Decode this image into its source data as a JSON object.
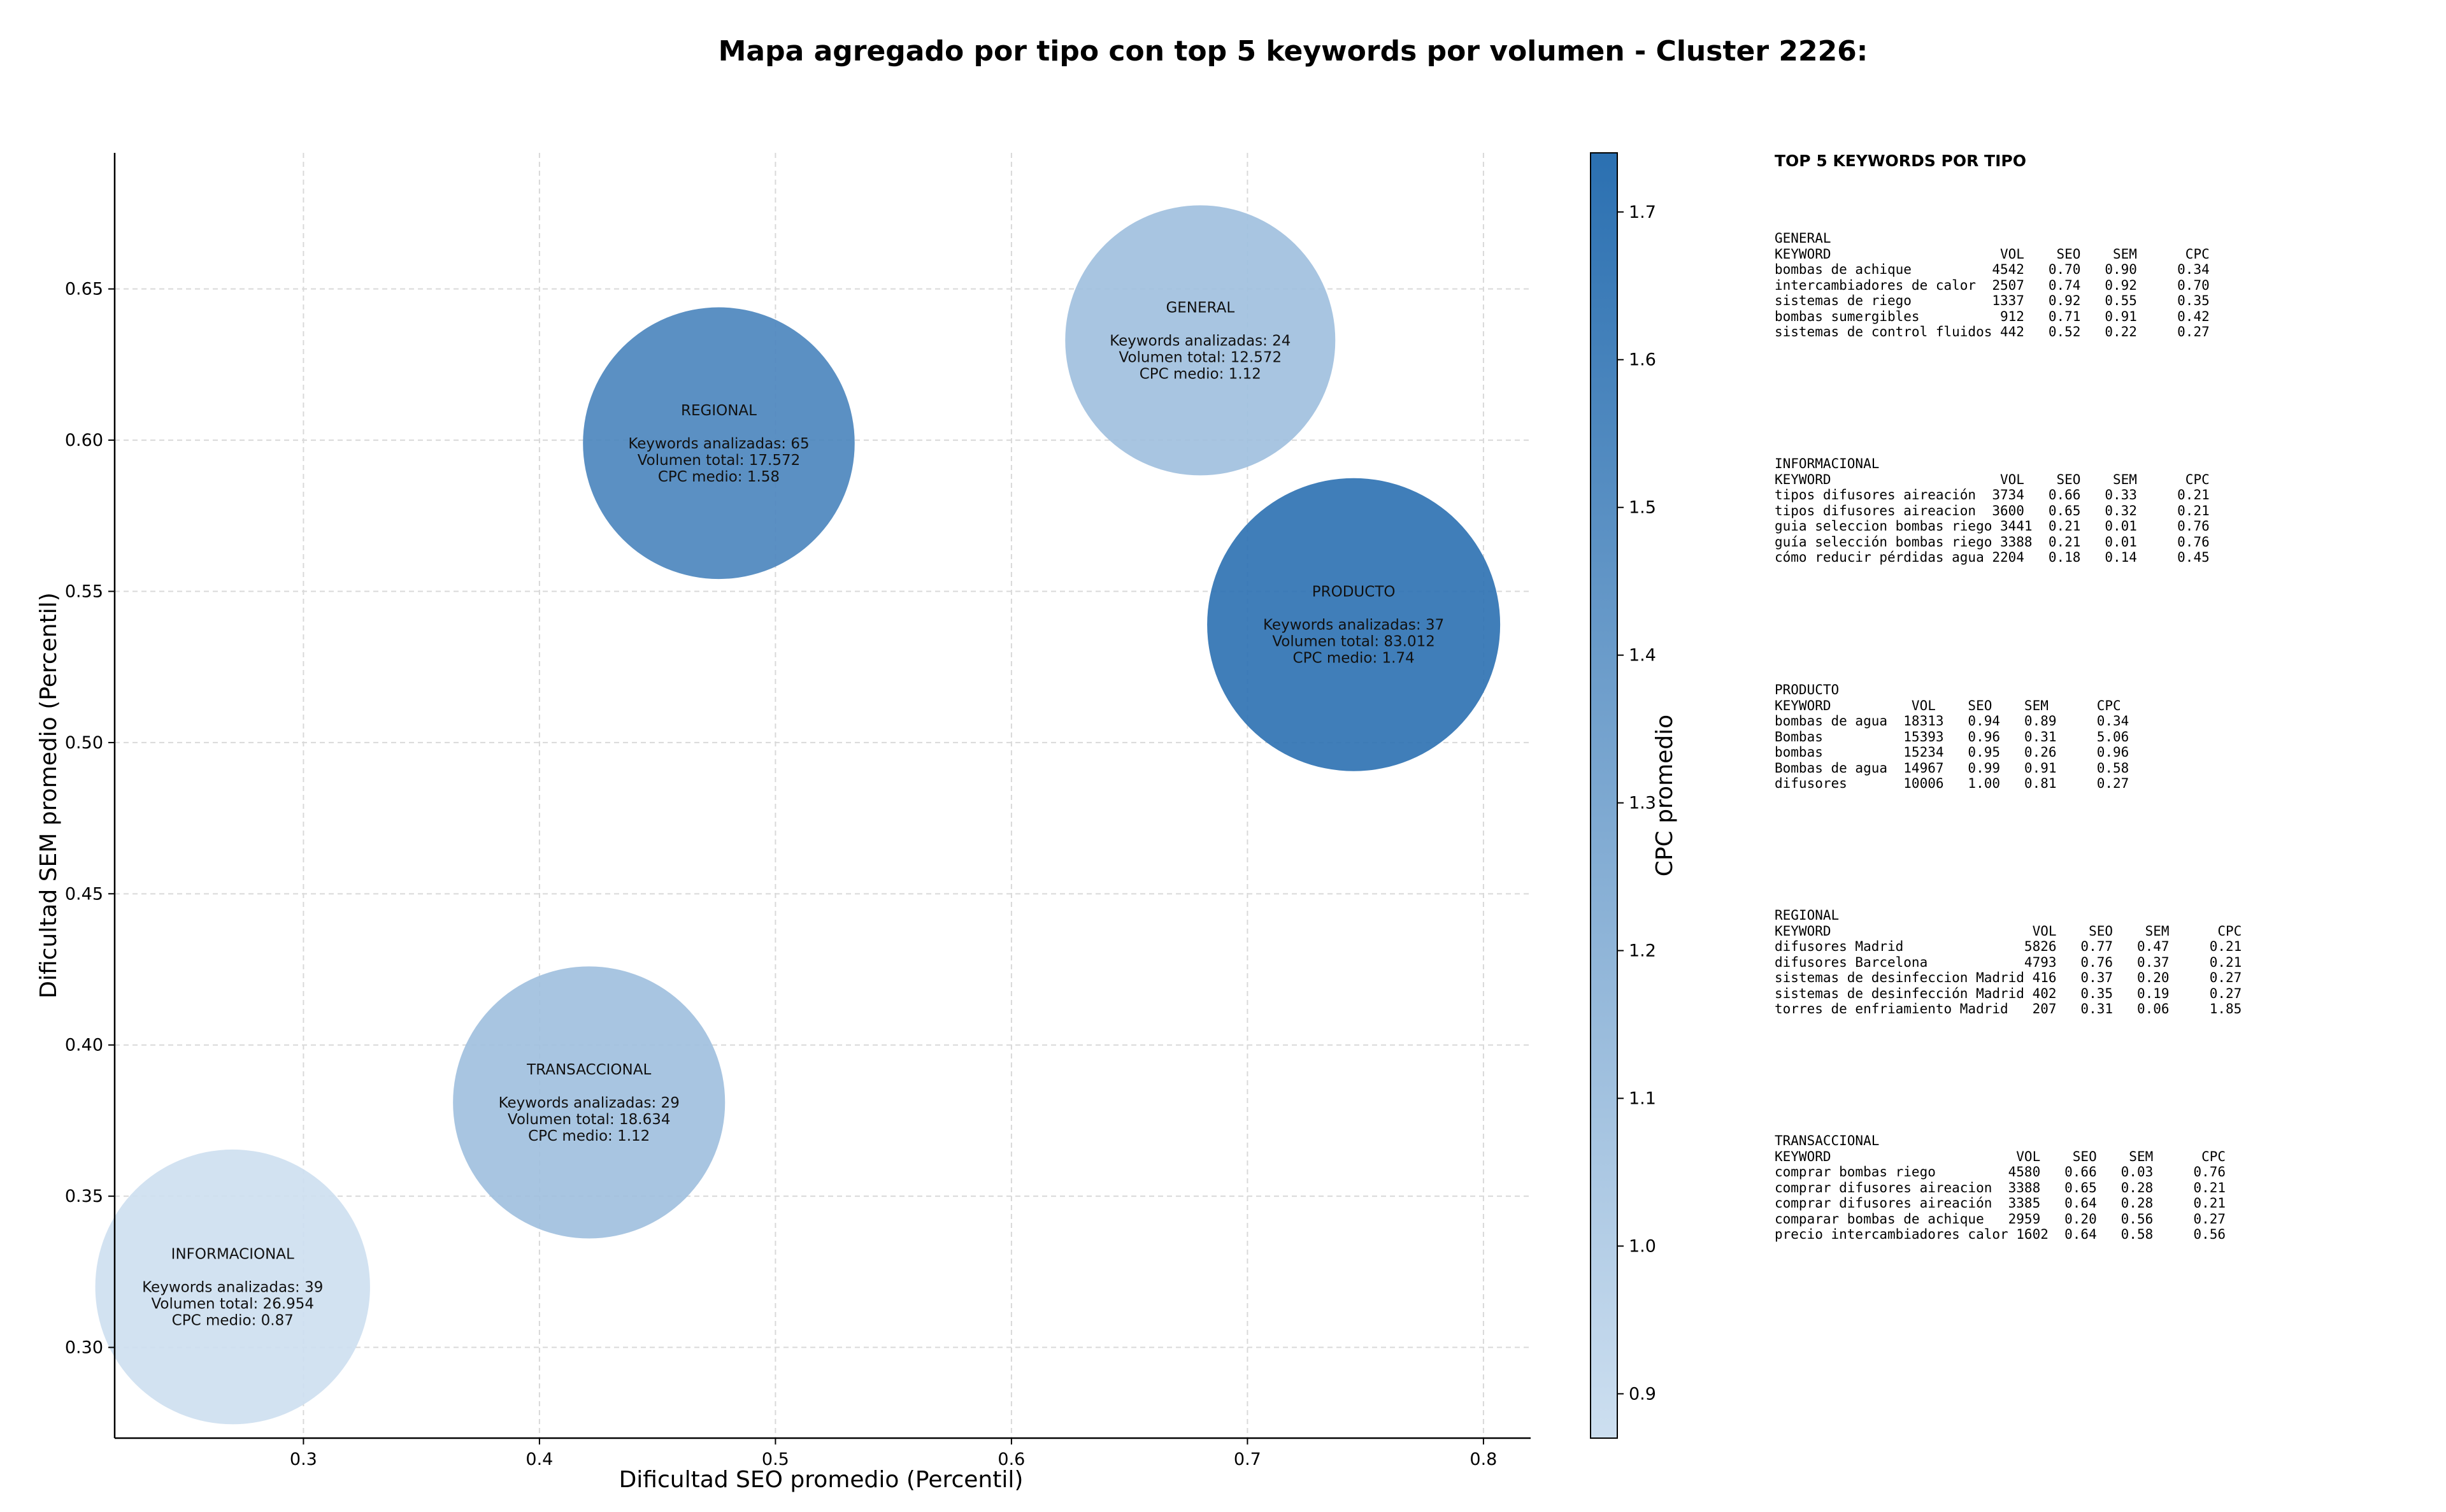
{
  "chart_data": {
    "type": "scatter",
    "title": "Mapa agregado por tipo con top 5 keywords por volumen - Cluster 2226:",
    "xlabel": "Dificultad SEO promedio (Percentil)",
    "ylabel": "Dificultad SEM promedio (Percentil)",
    "xlim": [
      0.22,
      0.82
    ],
    "ylim": [
      0.27,
      0.695
    ],
    "x_ticks": [
      0.3,
      0.4,
      0.5,
      0.6,
      0.7,
      0.8
    ],
    "x_tick_labels": [
      "0.3",
      "0.4",
      "0.5",
      "0.6",
      "0.7",
      "0.8"
    ],
    "y_ticks": [
      0.3,
      0.35,
      0.4,
      0.45,
      0.5,
      0.55,
      0.6,
      0.65
    ],
    "y_tick_labels": [
      "0.30",
      "0.35",
      "0.40",
      "0.45",
      "0.50",
      "0.55",
      "0.60",
      "0.65"
    ],
    "grid": true,
    "colorbar": {
      "label": "CPC promedio",
      "min": 0.87,
      "max": 1.74,
      "ticks": [
        0.9,
        1.0,
        1.1,
        1.2,
        1.3,
        1.4,
        1.5,
        1.6,
        1.7
      ],
      "tick_labels": [
        "0.9",
        "1.0",
        "1.1",
        "1.2",
        "1.3",
        "1.4",
        "1.5",
        "1.6",
        "1.7"
      ],
      "colormap": "Blues",
      "color_low": "#cddff0",
      "color_high": "#2b70b1"
    },
    "points": [
      {
        "tipo": "GENERAL",
        "x": 0.68,
        "y": 0.633,
        "keywords": 24,
        "volumen": 12572,
        "cpc": 1.12,
        "label_lines": [
          "GENERAL",
          "",
          "Keywords analizadas: 24",
          "Volumen total: 12.572",
          "CPC medio: 1.12"
        ]
      },
      {
        "tipo": "REGIONAL",
        "x": 0.476,
        "y": 0.599,
        "keywords": 65,
        "volumen": 17572,
        "cpc": 1.58,
        "label_lines": [
          "REGIONAL",
          "",
          "Keywords analizadas: 65",
          "Volumen total: 17.572",
          "CPC medio: 1.58"
        ]
      },
      {
        "tipo": "PRODUCTO",
        "x": 0.745,
        "y": 0.539,
        "keywords": 37,
        "volumen": 83012,
        "cpc": 1.74,
        "label_lines": [
          "PRODUCTO",
          "",
          "Keywords analizadas: 37",
          "Volumen total: 83.012",
          "CPC medio: 1.74"
        ]
      },
      {
        "tipo": "TRANSACCIONAL",
        "x": 0.421,
        "y": 0.381,
        "keywords": 29,
        "volumen": 18634,
        "cpc": 1.12,
        "label_lines": [
          "TRANSACCIONAL",
          "",
          "Keywords analizadas: 29",
          "Volumen total: 18.634",
          "CPC medio: 1.12"
        ]
      },
      {
        "tipo": "INFORMACIONAL",
        "x": 0.27,
        "y": 0.32,
        "keywords": 39,
        "volumen": 26954,
        "cpc": 0.87,
        "label_lines": [
          "INFORMACIONAL",
          "",
          "Keywords analizadas: 39",
          "Volumen total: 26.954",
          "CPC medio: 0.87"
        ]
      }
    ]
  },
  "side_panel": {
    "heading": "TOP 5 KEYWORDS POR TIPO",
    "tables": [
      {
        "tipo": "GENERAL",
        "lines": [
          "GENERAL",
          "KEYWORD                     VOL    SEO    SEM      CPC",
          "bombas de achique          4542   0.70   0.90     0.34",
          "intercambiadores de calor  2507   0.74   0.92     0.70",
          "sistemas de riego          1337   0.92   0.55     0.35",
          "bombas sumergibles          912   0.71   0.91     0.42",
          "sistemas de control fluidos 442   0.52   0.22     0.27"
        ]
      },
      {
        "tipo": "INFORMACIONAL",
        "lines": [
          "INFORMACIONAL",
          "KEYWORD                     VOL    SEO    SEM      CPC",
          "tipos difusores aireación  3734   0.66   0.33     0.21",
          "tipos difusores aireacion  3600   0.65   0.32     0.21",
          "guia seleccion bombas riego 3441  0.21   0.01     0.76",
          "guía selección bombas riego 3388  0.21   0.01     0.76",
          "cómo reducir pérdidas agua 2204   0.18   0.14     0.45"
        ]
      },
      {
        "tipo": "PRODUCTO",
        "lines": [
          "PRODUCTO",
          "KEYWORD          VOL    SEO    SEM      CPC",
          "bombas de agua  18313   0.94   0.89     0.34",
          "Bombas          15393   0.96   0.31     5.06",
          "bombas          15234   0.95   0.26     0.96",
          "Bombas de agua  14967   0.99   0.91     0.58",
          "difusores       10006   1.00   0.81     0.27"
        ]
      },
      {
        "tipo": "REGIONAL",
        "lines": [
          "REGIONAL",
          "KEYWORD                         VOL    SEO    SEM      CPC",
          "difusores Madrid               5826   0.77   0.47     0.21",
          "difusores Barcelona            4793   0.76   0.37     0.21",
          "sistemas de desinfeccion Madrid 416   0.37   0.20     0.27",
          "sistemas de desinfección Madrid 402   0.35   0.19     0.27",
          "torres de enfriamiento Madrid   207   0.31   0.06     1.85"
        ]
      },
      {
        "tipo": "TRANSACCIONAL",
        "lines": [
          "TRANSACCIONAL",
          "KEYWORD                       VOL    SEO    SEM      CPC",
          "comprar bombas riego         4580   0.66   0.03     0.76",
          "comprar difusores aireacion  3388   0.65   0.28     0.21",
          "comprar difusores aireación  3385   0.64   0.28     0.21",
          "comparar bombas de achique   2959   0.20   0.56     0.27",
          "precio intercambiadores calor 1602  0.64   0.58     0.56"
        ]
      }
    ]
  }
}
